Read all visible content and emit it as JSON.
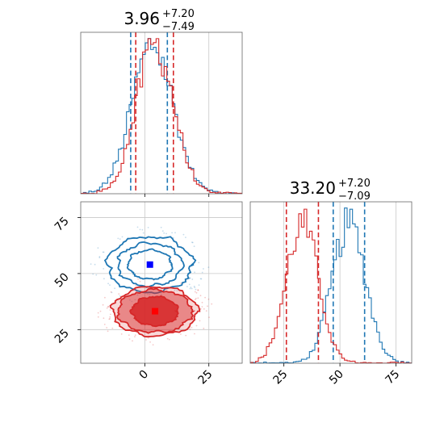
{
  "figure": {
    "panel_top_title": {
      "value": "3.96",
      "plus": "+7.20",
      "minus": "−7.49"
    },
    "panel_right_title": {
      "value": "33.20",
      "plus": "+7.20",
      "minus": "−7.09"
    }
  },
  "colors": {
    "blue": "#1f77b4",
    "red": "#d62728"
  },
  "chart_data": [
    {
      "type": "histogram",
      "panel": "top-left",
      "title": "3.96 +7.20 −7.49",
      "xlim": [
        -25,
        38
      ],
      "grid": true,
      "bin_count": 60,
      "series": [
        {
          "name": "",
          "color": "#1f77b4",
          "mean": 3.0,
          "sd": 8.0,
          "quantile_lines": [
            -5.5,
            8.8
          ]
        },
        {
          "name": "",
          "color": "#d62728",
          "mean": 3.96,
          "sd": 7.3,
          "quantile_lines": [
            -3.53,
            11.16
          ]
        }
      ]
    },
    {
      "type": "contour",
      "panel": "bottom-left",
      "xlim": [
        -25,
        38
      ],
      "ylim": [
        10,
        82
      ],
      "xticks": [
        0,
        25
      ],
      "yticks": [
        25,
        50,
        75
      ],
      "grid": true,
      "series": [
        {
          "name": "",
          "color": "#1f77b4",
          "center": [
            2.0,
            54.0
          ],
          "sx": [
            16.5,
            12.5,
            8.5
          ],
          "sy": [
            12.5,
            9.5,
            6.5
          ],
          "filled": false,
          "marker": [
            2.0,
            54.0
          ]
        },
        {
          "name": "",
          "color": "#d62728",
          "center": [
            4.0,
            33.2
          ],
          "sx": [
            16.5,
            14.5,
            9.0
          ],
          "sy": [
            11.0,
            9.5,
            6.5
          ],
          "filled": true,
          "marker": [
            4.0,
            33.2
          ]
        }
      ]
    },
    {
      "type": "histogram",
      "panel": "bottom-right",
      "title": "33.20 +7.20 −7.09",
      "xlim": [
        10,
        82
      ],
      "xticks": [
        25,
        50,
        75
      ],
      "grid": true,
      "bin_count": 60,
      "series": [
        {
          "name": "",
          "color": "#1f77b4",
          "mean": 54.0,
          "sd": 7.5,
          "quantile_lines": [
            47.0,
            61.0
          ]
        },
        {
          "name": "",
          "color": "#d62728",
          "mean": 33.2,
          "sd": 7.2,
          "quantile_lines": [
            26.11,
            40.4
          ]
        }
      ]
    }
  ]
}
